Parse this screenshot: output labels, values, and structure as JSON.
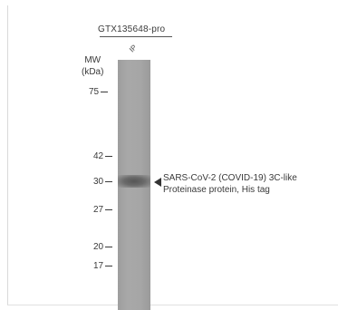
{
  "blot": {
    "product_code": "GTX135648-pro",
    "lane_label": "IP",
    "mw_title_line1": "MW",
    "mw_title_line2": "(kDa)",
    "markers": [
      "75",
      "42",
      "30",
      "27",
      "20",
      "17"
    ],
    "band_label_line1": "SARS-CoV-2 (COVID-19) 3C-like",
    "band_label_line2": "Proteinase protein, His tag"
  }
}
